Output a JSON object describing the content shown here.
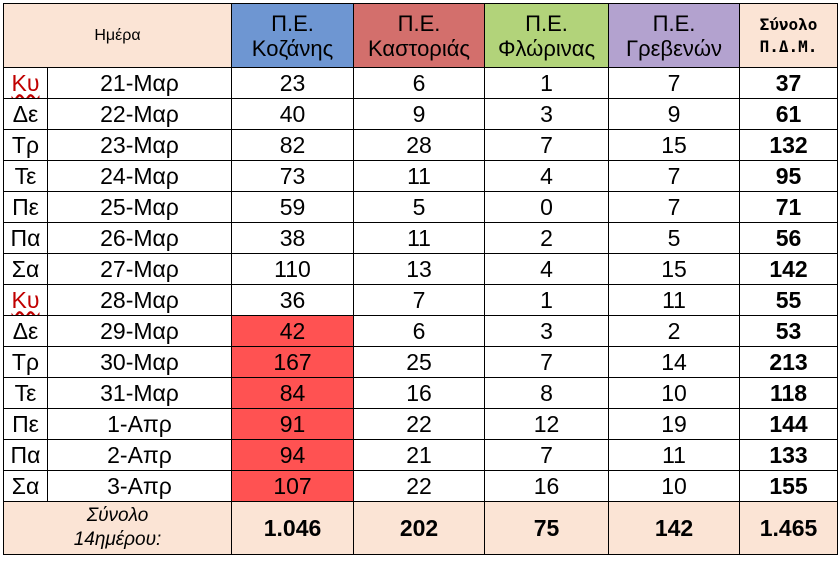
{
  "header": {
    "day": "Ημέρα",
    "kozani": [
      "Π.Ε.",
      "Κοζάνης"
    ],
    "kastoria": [
      "Π.Ε.",
      "Καστοριάς"
    ],
    "florina": [
      "Π.Ε.",
      "Φλώρινας"
    ],
    "grevena": [
      "Π.Ε.",
      "Γρεβενών"
    ],
    "total": [
      "Σύνολο",
      "Π.Δ.Μ."
    ]
  },
  "colors": {
    "kozani_header": "#6e96d2",
    "kastoria_header": "#d36f6c",
    "florina_header": "#b2d37a",
    "grevena_header": "#b3a2cf",
    "peach": "#fbe4d5",
    "highlight": "#ff5252"
  },
  "rows": [
    {
      "dow": "Κυ",
      "date": "21-Μαρ",
      "kozani": "23",
      "kastoria": "6",
      "florina": "1",
      "grevena": "7",
      "total": "37",
      "sunday": true,
      "highlight": false
    },
    {
      "dow": "Δε",
      "date": "22-Μαρ",
      "kozani": "40",
      "kastoria": "9",
      "florina": "3",
      "grevena": "9",
      "total": "61",
      "sunday": false,
      "highlight": false
    },
    {
      "dow": "Τρ",
      "date": "23-Μαρ",
      "kozani": "82",
      "kastoria": "28",
      "florina": "7",
      "grevena": "15",
      "total": "132",
      "sunday": false,
      "highlight": false
    },
    {
      "dow": "Τε",
      "date": "24-Μαρ",
      "kozani": "73",
      "kastoria": "11",
      "florina": "4",
      "grevena": "7",
      "total": "95",
      "sunday": false,
      "highlight": false
    },
    {
      "dow": "Πε",
      "date": "25-Μαρ",
      "kozani": "59",
      "kastoria": "5",
      "florina": "0",
      "grevena": "7",
      "total": "71",
      "sunday": false,
      "highlight": false
    },
    {
      "dow": "Πα",
      "date": "26-Μαρ",
      "kozani": "38",
      "kastoria": "11",
      "florina": "2",
      "grevena": "5",
      "total": "56",
      "sunday": false,
      "highlight": false
    },
    {
      "dow": "Σα",
      "date": "27-Μαρ",
      "kozani": "110",
      "kastoria": "13",
      "florina": "4",
      "grevena": "15",
      "total": "142",
      "sunday": false,
      "highlight": false
    },
    {
      "dow": "Κυ",
      "date": "28-Μαρ",
      "kozani": "36",
      "kastoria": "7",
      "florina": "1",
      "grevena": "11",
      "total": "55",
      "sunday": true,
      "highlight": false
    },
    {
      "dow": "Δε",
      "date": "29-Μαρ",
      "kozani": "42",
      "kastoria": "6",
      "florina": "3",
      "grevena": "2",
      "total": "53",
      "sunday": false,
      "highlight": true
    },
    {
      "dow": "Τρ",
      "date": "30-Μαρ",
      "kozani": "167",
      "kastoria": "25",
      "florina": "7",
      "grevena": "14",
      "total": "213",
      "sunday": false,
      "highlight": true
    },
    {
      "dow": "Τε",
      "date": "31-Μαρ",
      "kozani": "84",
      "kastoria": "16",
      "florina": "8",
      "grevena": "10",
      "total": "118",
      "sunday": false,
      "highlight": true
    },
    {
      "dow": "Πε",
      "date": "1-Απρ",
      "kozani": "91",
      "kastoria": "22",
      "florina": "12",
      "grevena": "19",
      "total": "144",
      "sunday": false,
      "highlight": true
    },
    {
      "dow": "Πα",
      "date": "2-Απρ",
      "kozani": "94",
      "kastoria": "21",
      "florina": "7",
      "grevena": "11",
      "total": "133",
      "sunday": false,
      "highlight": true
    },
    {
      "dow": "Σα",
      "date": "3-Απρ",
      "kozani": "107",
      "kastoria": "22",
      "florina": "16",
      "grevena": "10",
      "total": "155",
      "sunday": false,
      "highlight": true
    }
  ],
  "footer": {
    "label": [
      "Σύνολο",
      "14ημέρου:"
    ],
    "kozani": "1.046",
    "kastoria": "202",
    "florina": "75",
    "grevena": "142",
    "total": "1.465"
  }
}
